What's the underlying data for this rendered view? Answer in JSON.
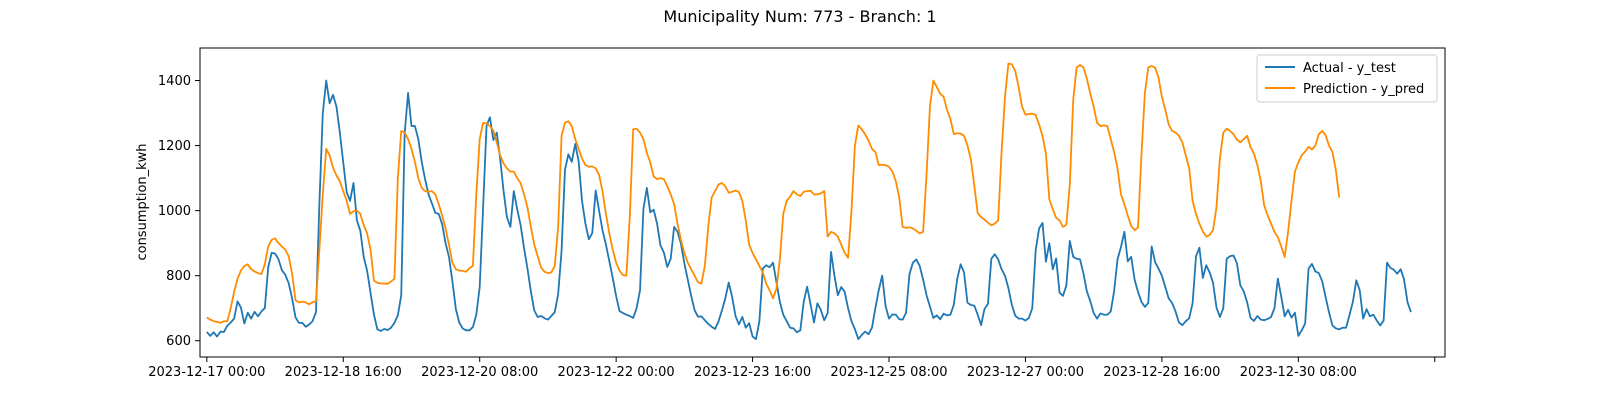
{
  "chart_data": {
    "type": "line",
    "title": "Municipality Num: 773 - Branch: 1",
    "xlabel": "",
    "ylabel": "consumption_kwh",
    "xlim": [
      "2023-12-16 22:00",
      "2024-01-01 03:00"
    ],
    "ylim": [
      550,
      1500
    ],
    "x_tick_labels": [
      "2023-12-17 00:00",
      "2023-12-18 16:00",
      "2023-12-20 08:00",
      "2023-12-22 00:00",
      "2023-12-23 16:00",
      "2023-12-25 08:00",
      "2023-12-27 00:00",
      "2023-12-28 16:00",
      "2023-12-30 08:00",
      ""
    ],
    "x_tick_dates": [
      "2023-12-17 00:00",
      "2023-12-18 16:00",
      "2023-12-20 08:00",
      "2023-12-22 00:00",
      "2023-12-23 16:00",
      "2023-12-25 08:00",
      "2023-12-27 00:00",
      "2023-12-28 16:00",
      "2023-12-30 08:00",
      "2024-01-01 00:00"
    ],
    "y_ticks": [
      600,
      800,
      1000,
      1200,
      1400
    ],
    "grid": false,
    "legend_position": "top-right",
    "x_start": "2023-12-17 00:00",
    "step_hours": 1,
    "series": [
      {
        "name": "Actual - y_test",
        "color": "#1f77b4",
        "values": [
          627,
          615,
          626,
          613,
          628,
          627,
          646,
          656,
          668,
          721,
          702,
          653,
          686,
          668,
          689,
          675,
          690,
          700,
          826,
          870,
          868,
          851,
          817,
          803,
          777,
          730,
          672,
          655,
          655,
          643,
          650,
          660,
          688,
          1020,
          1300,
          1400,
          1330,
          1356,
          1320,
          1240,
          1148,
          1057,
          1030,
          1085,
          970,
          938,
          857,
          815,
          747,
          680,
          635,
          630,
          636,
          633,
          640,
          655,
          678,
          740,
          1237,
          1362,
          1260,
          1260,
          1220,
          1150,
          1096,
          1050,
          1022,
          993,
          990,
          958,
          900,
          857,
          783,
          698,
          656,
          638,
          632,
          632,
          642,
          680,
          765,
          1010,
          1260,
          1287,
          1217,
          1240,
          1160,
          1060,
          979,
          950,
          1060,
          1004,
          955,
          885,
          822,
          752,
          693,
          673,
          676,
          669,
          665,
          676,
          688,
          743,
          876,
          1126,
          1173,
          1150,
          1205,
          1152,
          1030,
          960,
          912,
          931,
          1062,
          1000,
          940,
          896,
          845,
          793,
          737,
          691,
          685,
          680,
          676,
          670,
          700,
          755,
          1005,
          1070,
          995,
          1003,
          960,
          893,
          871,
          827,
          852,
          950,
          935,
          898,
          838,
          788,
          738,
          694,
          674,
          675,
          663,
          652,
          643,
          636,
          659,
          693,
          730,
          779,
          735,
          676,
          650,
          673,
          640,
          654,
          613,
          605,
          660,
          822,
          832,
          826,
          840,
          780,
          719,
          680,
          660,
          640,
          638,
          626,
          632,
          720,
          766,
          712,
          656,
          715,
          695,
          663,
          685,
          873,
          800,
          740,
          765,
          750,
          700,
          660,
          636,
          605,
          618,
          628,
          620,
          640,
          700,
          756,
          800,
          706,
          668,
          681,
          680,
          666,
          665,
          686,
          805,
          840,
          850,
          830,
          788,
          740,
          705,
          670,
          678,
          666,
          683,
          678,
          680,
          711,
          790,
          835,
          810,
          717,
          710,
          708,
          680,
          648,
          698,
          713,
          852,
          866,
          850,
          820,
          800,
          762,
          711,
          677,
          668,
          668,
          662,
          670,
          700,
          878,
          945,
          962,
          843,
          900,
          820,
          853,
          748,
          738,
          770,
          907,
          858,
          852,
          850,
          807,
          752,
          722,
          685,
          668,
          684,
          680,
          680,
          690,
          753,
          851,
          888,
          935,
          844,
          858,
          788,
          750,
          720,
          704,
          716,
          890,
          842,
          822,
          800,
          765,
          730,
          716,
          690,
          656,
          648,
          660,
          669,
          715,
          860,
          886,
          793,
          832,
          810,
          778,
          702,
          673,
          700,
          852,
          860,
          862,
          838,
          770,
          752,
          718,
          670,
          661,
          676,
          665,
          663,
          667,
          673,
          700,
          791,
          735,
          675,
          695,
          671,
          686,
          615,
          632,
          653,
          822,
          836,
          813,
          808,
          783,
          734,
          687,
          647,
          638,
          635,
          640,
          640,
          679,
          720,
          786,
          755,
          668,
          697,
          675,
          680,
          662,
          647,
          662,
          840,
          824,
          818,
          806,
          820,
          788,
          719,
          688
        ]
      },
      {
        "name": "Prediction - y_pred",
        "color": "#ff8c00",
        "values": [
          672,
          665,
          660,
          658,
          655,
          660,
          660,
          700,
          750,
          790,
          816,
          830,
          835,
          820,
          813,
          808,
          805,
          835,
          890,
          910,
          915,
          900,
          890,
          880,
          860,
          806,
          725,
          718,
          720,
          718,
          712,
          718,
          722,
          880,
          1050,
          1190,
          1170,
          1132,
          1108,
          1090,
          1060,
          1030,
          990,
          998,
          1000,
          990,
          955,
          930,
          880,
          785,
          778,
          776,
          776,
          775,
          782,
          790,
          1100,
          1245,
          1240,
          1220,
          1190,
          1150,
          1100,
          1070,
          1060,
          1058,
          1060,
          1050,
          1020,
          985,
          945,
          895,
          840,
          820,
          816,
          815,
          812,
          823,
          830,
          1050,
          1220,
          1270,
          1268,
          1260,
          1246,
          1210,
          1170,
          1145,
          1130,
          1120,
          1120,
          1100,
          1085,
          1050,
          1010,
          950,
          895,
          860,
          825,
          812,
          808,
          810,
          830,
          950,
          1230,
          1270,
          1275,
          1260,
          1220,
          1190,
          1160,
          1140,
          1135,
          1136,
          1130,
          1110,
          1060,
          990,
          930,
          880,
          840,
          815,
          802,
          800,
          980,
          1250,
          1252,
          1240,
          1220,
          1178,
          1148,
          1105,
          1097,
          1100,
          1097,
          1075,
          1050,
          1020,
          960,
          910,
          870,
          840,
          820,
          800,
          780,
          776,
          830,
          950,
          1040,
          1060,
          1080,
          1085,
          1075,
          1055,
          1058,
          1062,
          1057,
          1030,
          970,
          895,
          870,
          850,
          830,
          810,
          775,
          755,
          730,
          760,
          850,
          990,
          1030,
          1043,
          1060,
          1050,
          1045,
          1058,
          1060,
          1061,
          1050,
          1050,
          1053,
          1060,
          920,
          935,
          930,
          920,
          895,
          870,
          855,
          1000,
          1200,
          1262,
          1250,
          1235,
          1215,
          1190,
          1180,
          1140,
          1141,
          1140,
          1135,
          1120,
          1090,
          1040,
          950,
          947,
          949,
          945,
          938,
          930,
          935,
          1110,
          1320,
          1400,
          1380,
          1360,
          1350,
          1310,
          1282,
          1235,
          1238,
          1237,
          1230,
          1200,
          1158,
          1077,
          992,
          980,
          972,
          963,
          955,
          960,
          970,
          1180,
          1350,
          1452,
          1450,
          1430,
          1380,
          1320,
          1295,
          1297,
          1298,
          1294,
          1265,
          1230,
          1175,
          1035,
          1005,
          978,
          970,
          950,
          957,
          1080,
          1340,
          1440,
          1448,
          1440,
          1406,
          1360,
          1320,
          1270,
          1260,
          1262,
          1260,
          1220,
          1180,
          1130,
          1050,
          1020,
          985,
          953,
          940,
          948,
          1170,
          1360,
          1440,
          1445,
          1440,
          1410,
          1350,
          1310,
          1265,
          1245,
          1240,
          1230,
          1210,
          1170,
          1130,
          1030,
          990,
          960,
          936,
          920,
          925,
          940,
          1010,
          1160,
          1240,
          1252,
          1245,
          1235,
          1218,
          1210,
          1220,
          1230,
          1195,
          1175,
          1140,
          1090,
          1015,
          986,
          960,
          935,
          918,
          890,
          857,
          935,
          1030,
          1120,
          1148,
          1170,
          1182,
          1196,
          1188,
          1200,
          1235,
          1245,
          1232,
          1200,
          1180,
          1125,
          1040
        ]
      }
    ]
  }
}
